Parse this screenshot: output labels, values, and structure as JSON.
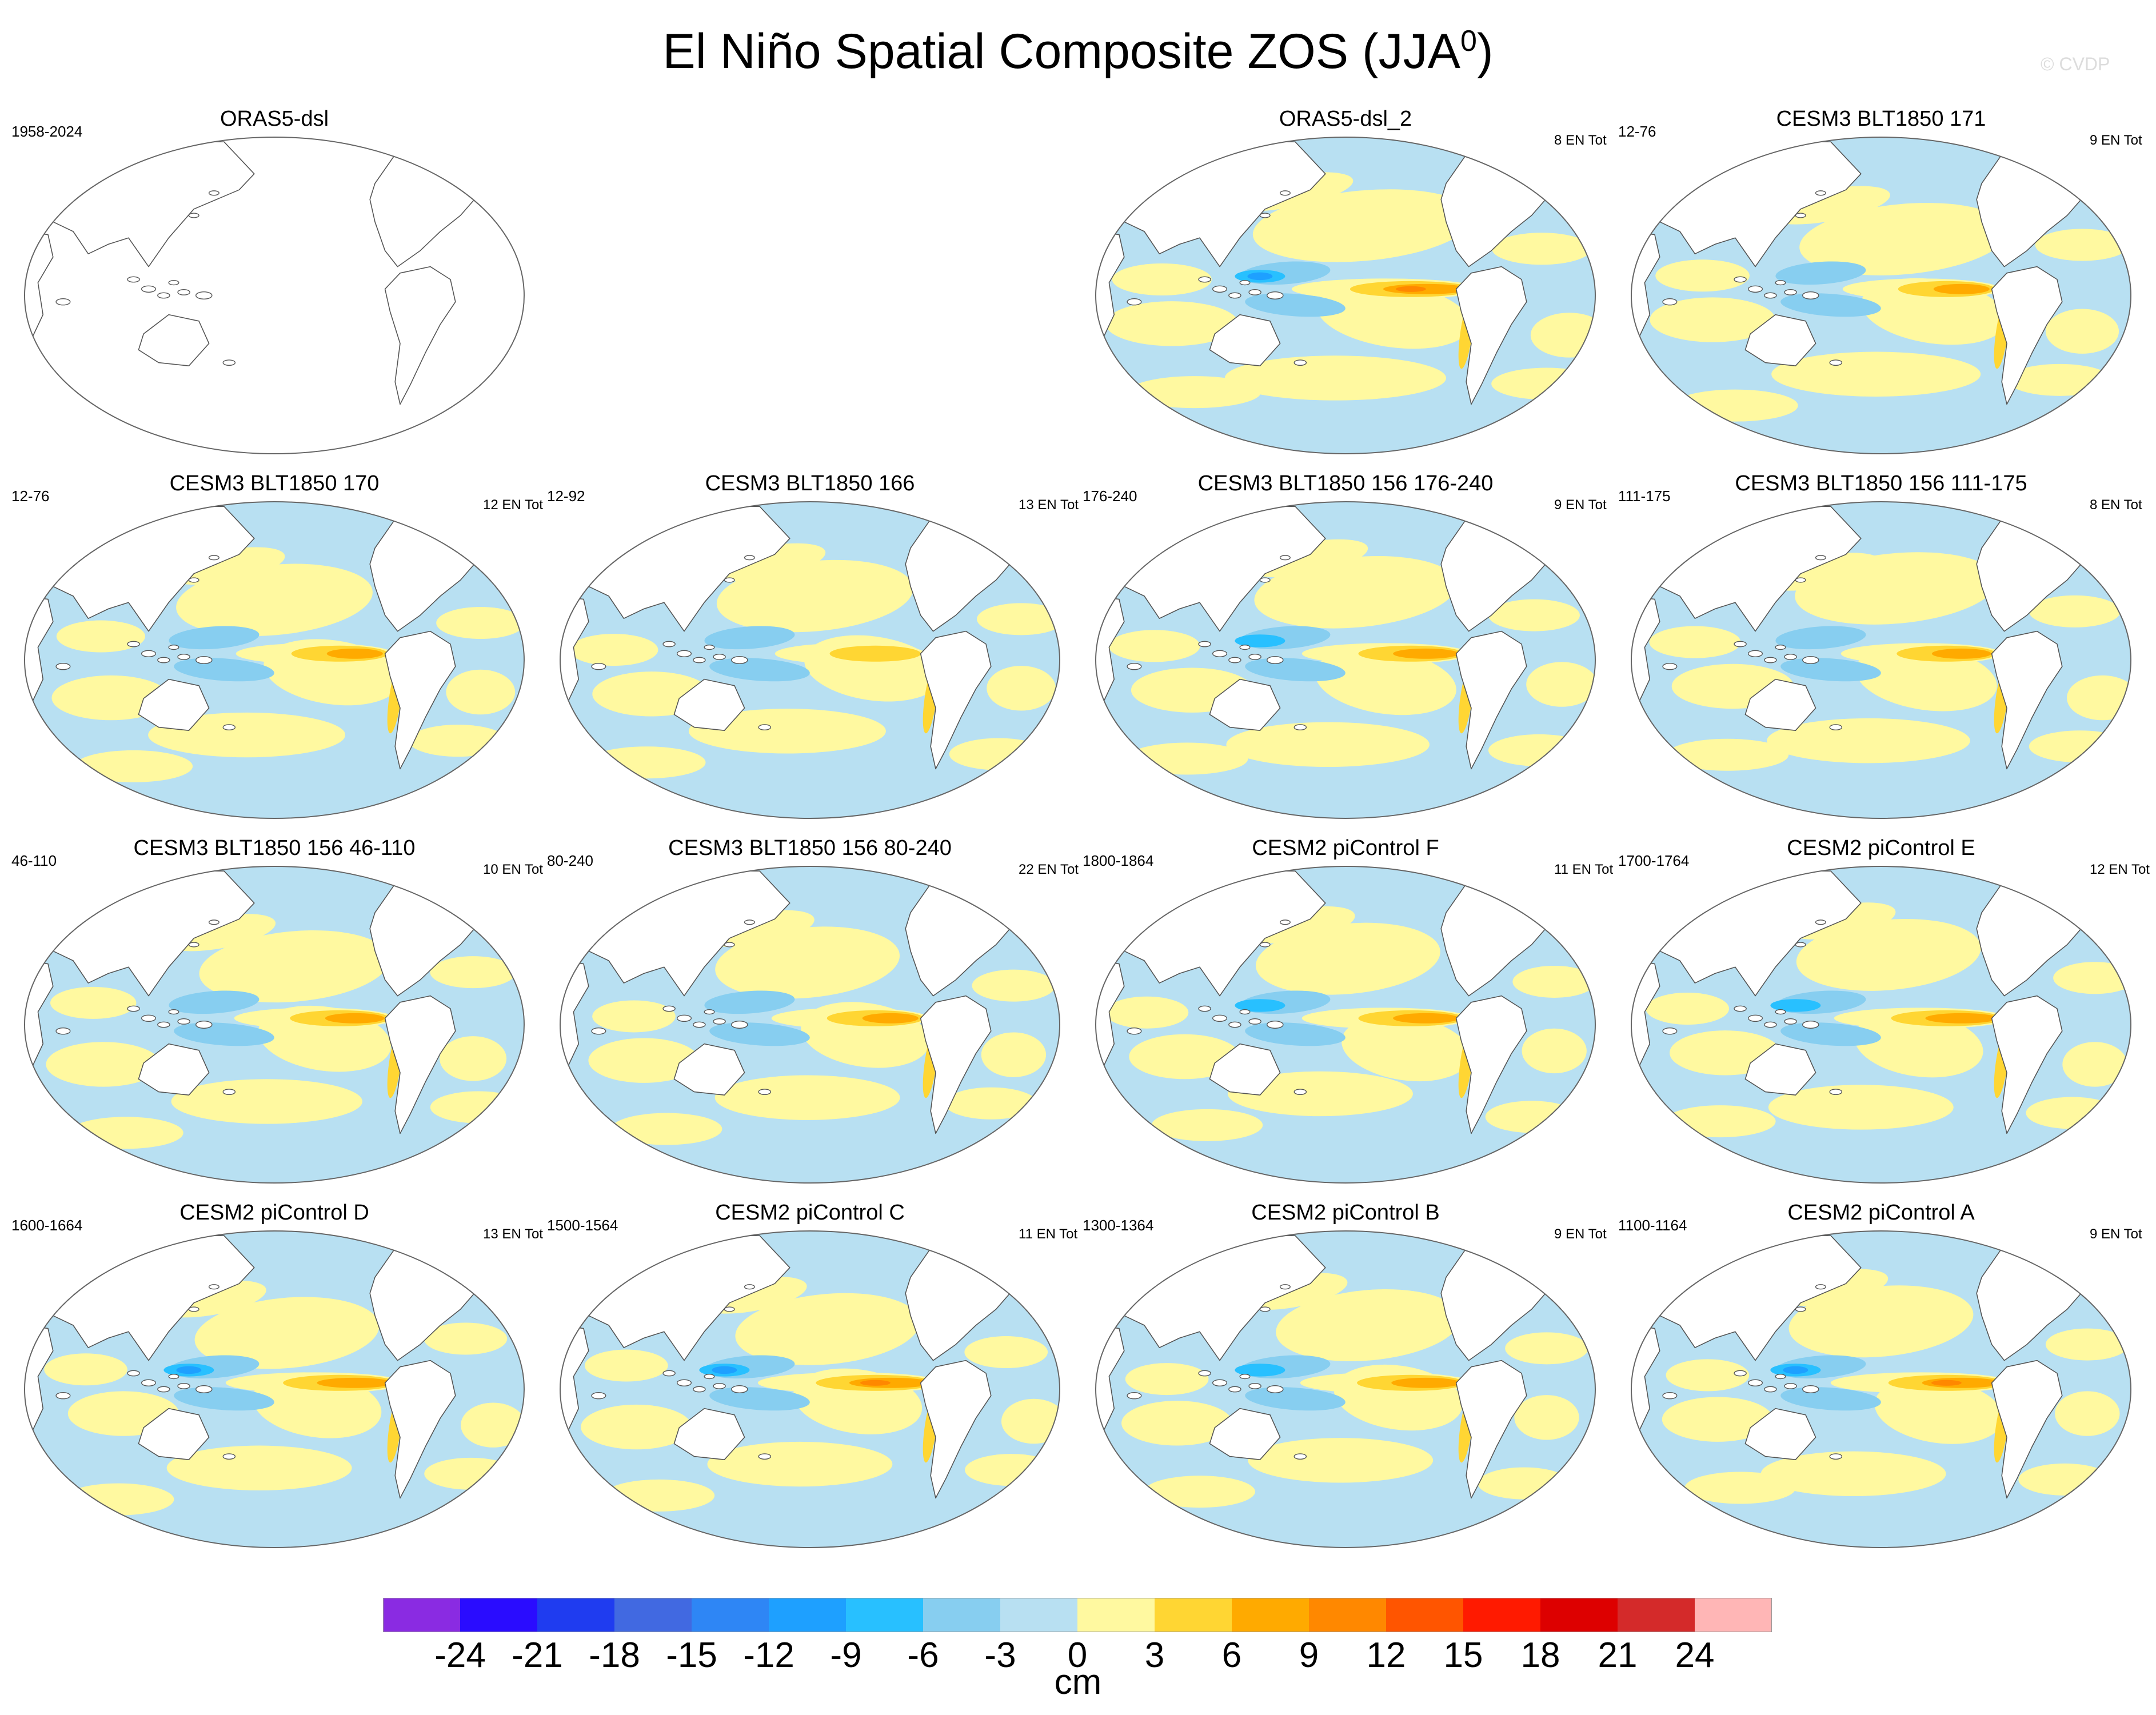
{
  "title": {
    "main": "El Niño Spatial Composite ZOS (JJA",
    "superscript": "0",
    "closing": ")"
  },
  "watermark": "© CVDP",
  "panels": [
    {
      "title": "ORAS5-dsl",
      "years": "1958-2024",
      "count": "",
      "blank": true
    },
    {
      "title": "ORAS5-dsl_2",
      "years": "",
      "count": "8 EN Tot",
      "blank": false,
      "strength": 1.0,
      "noise": 1.0
    },
    {
      "title": "CESM3 BLT1850 171",
      "years": "12-76",
      "count": "9 EN Tot",
      "blank": false,
      "strength": 0.55,
      "noise": 0.8
    },
    {
      "title": "CESM3 BLT1850 170",
      "years": "12-76",
      "count": "12 EN Tot",
      "blank": false,
      "strength": 0.55,
      "noise": 0.6
    },
    {
      "title": "CESM3 BLT1850 166",
      "years": "12-92",
      "count": "13 EN Tot",
      "blank": false,
      "strength": 0.45,
      "noise": 0.6
    },
    {
      "title": "CESM3 BLT1850 156 176-240",
      "years": "176-240",
      "count": "9 EN Tot",
      "blank": false,
      "strength": 0.7,
      "noise": 0.7
    },
    {
      "title": "CESM3 BLT1850 156 111-175",
      "years": "111-175",
      "count": "8 EN Tot",
      "blank": false,
      "strength": 0.6,
      "noise": 0.7
    },
    {
      "title": "CESM3 BLT1850 156 46-110",
      "years": "46-110",
      "count": "10 EN Tot",
      "blank": false,
      "strength": 0.6,
      "noise": 0.5
    },
    {
      "title": "CESM3 BLT1850 156 80-240",
      "years": "80-240",
      "count": "22 EN Tot",
      "blank": false,
      "strength": 0.55,
      "noise": 0.4
    },
    {
      "title": "CESM2 piControl F",
      "years": "1800-1864",
      "count": "11 EN Tot",
      "blank": false,
      "strength": 0.7,
      "noise": 0.4
    },
    {
      "title": "CESM2 piControl E",
      "years": "1700-1764",
      "count": "12 EN Tot",
      "blank": false,
      "strength": 0.8,
      "noise": 0.4
    },
    {
      "title": "CESM2 piControl D",
      "years": "1600-1664",
      "count": "13 EN Tot",
      "blank": false,
      "strength": 0.85,
      "noise": 0.4
    },
    {
      "title": "CESM2 piControl C",
      "years": "1500-1564",
      "count": "11 EN Tot",
      "blank": false,
      "strength": 0.95,
      "noise": 0.4
    },
    {
      "title": "CESM2 piControl B",
      "years": "1300-1364",
      "count": "9 EN Tot",
      "blank": false,
      "strength": 0.75,
      "noise": 0.4
    },
    {
      "title": "CESM2 piControl A",
      "years": "1100-1164",
      "count": "9 EN Tot",
      "blank": false,
      "strength": 0.9,
      "noise": 0.4
    }
  ],
  "colorbar": {
    "unit": "cm",
    "levels": [
      "-24",
      "-21",
      "-18",
      "-15",
      "-12",
      "-9",
      "-6",
      "-3",
      "0",
      "3",
      "6",
      "9",
      "12",
      "15",
      "18",
      "21",
      "24"
    ],
    "colors": [
      "#8a2be2",
      "#2a0cff",
      "#1f3cf0",
      "#4169e1",
      "#2e86f5",
      "#1ea0ff",
      "#28c0ff",
      "#87cef0",
      "#b8e0f2",
      "#fff9a0",
      "#ffd633",
      "#ffaa00",
      "#ff8800",
      "#ff5500",
      "#ff1a00",
      "#dd0000",
      "#d42a2a",
      "#ffb6b6"
    ],
    "land_color": "#ffffff",
    "outline_color": "#555555"
  }
}
